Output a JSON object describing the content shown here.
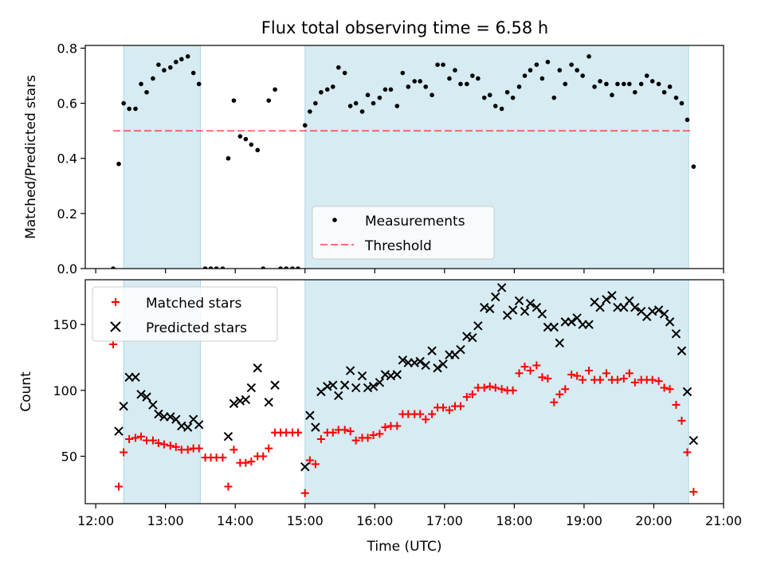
{
  "title": "Flux total observing time = 6.58 h",
  "colors": {
    "shade": "#add8e6",
    "threshold": "#ff0000",
    "matched": "#ff0000",
    "predicted": "#000000",
    "measure": "#000000"
  },
  "chart_data": [
    {
      "type": "scatter",
      "ylabel": "Matched/Predicted stars",
      "xlim": [
        11.85,
        21.0
      ],
      "ylim": [
        0,
        0.81
      ],
      "ytick_labels": [
        "0.0",
        "0.2",
        "0.4",
        "0.6",
        "0.8"
      ],
      "ytick_values": [
        0,
        0.2,
        0.4,
        0.6,
        0.8
      ],
      "shaded_spans": [
        [
          12.4,
          13.5
        ],
        [
          15.0,
          20.5
        ]
      ],
      "threshold": {
        "name": "Threshold",
        "y": 0.5,
        "x_range": [
          12.25,
          20.55
        ]
      },
      "legend": {
        "position": "lower center",
        "entries": [
          "Measurements",
          "Threshold"
        ]
      },
      "series": [
        {
          "name": "Measurements",
          "x": [
            12.25,
            12.33,
            12.4,
            12.48,
            12.57,
            12.65,
            12.73,
            12.82,
            12.9,
            12.98,
            13.07,
            13.15,
            13.23,
            13.32,
            13.4,
            13.48,
            13.57,
            13.65,
            13.73,
            13.82,
            13.9,
            13.98,
            14.07,
            14.15,
            14.23,
            14.32,
            14.4,
            14.48,
            14.57,
            14.65,
            14.73,
            14.82,
            14.9,
            15.0,
            15.07,
            15.15,
            15.23,
            15.32,
            15.4,
            15.48,
            15.57,
            15.65,
            15.73,
            15.82,
            15.9,
            15.98,
            16.07,
            16.15,
            16.23,
            16.32,
            16.4,
            16.48,
            16.57,
            16.65,
            16.73,
            16.82,
            16.9,
            16.98,
            17.07,
            17.15,
            17.23,
            17.32,
            17.4,
            17.48,
            17.57,
            17.65,
            17.73,
            17.82,
            17.9,
            17.98,
            18.07,
            18.15,
            18.23,
            18.32,
            18.4,
            18.48,
            18.57,
            18.65,
            18.73,
            18.82,
            18.9,
            18.98,
            19.07,
            19.15,
            19.23,
            19.32,
            19.4,
            19.48,
            19.57,
            19.65,
            19.73,
            19.82,
            19.9,
            19.98,
            20.07,
            20.15,
            20.23,
            20.32,
            20.4,
            20.48,
            20.57
          ],
          "y": [
            0.0,
            0.38,
            0.6,
            0.58,
            0.58,
            0.67,
            0.64,
            0.69,
            0.74,
            0.72,
            0.73,
            0.75,
            0.76,
            0.77,
            0.71,
            0.67,
            0.0,
            0.0,
            0.0,
            0.0,
            0.4,
            0.61,
            0.48,
            0.47,
            0.45,
            0.43,
            0.0,
            0.61,
            0.65,
            0.0,
            0.0,
            0.0,
            0.0,
            0.52,
            0.57,
            0.6,
            0.64,
            0.65,
            0.66,
            0.73,
            0.71,
            0.59,
            0.6,
            0.57,
            0.63,
            0.6,
            0.62,
            0.65,
            0.65,
            0.59,
            0.71,
            0.66,
            0.68,
            0.68,
            0.66,
            0.63,
            0.74,
            0.74,
            0.69,
            0.72,
            0.67,
            0.67,
            0.7,
            0.69,
            0.62,
            0.63,
            0.59,
            0.58,
            0.64,
            0.62,
            0.66,
            0.7,
            0.72,
            0.74,
            0.69,
            0.75,
            0.62,
            0.72,
            0.67,
            0.74,
            0.72,
            0.7,
            0.77,
            0.66,
            0.68,
            0.67,
            0.63,
            0.67,
            0.67,
            0.67,
            0.64,
            0.67,
            0.7,
            0.68,
            0.67,
            0.64,
            0.66,
            0.62,
            0.6,
            0.54,
            0.37
          ]
        }
      ]
    },
    {
      "type": "scatter",
      "xlabel": "Time (UTC)",
      "ylabel": "Count",
      "xlim": [
        11.85,
        21.0
      ],
      "ylim": [
        14,
        184
      ],
      "xtick_labels": [
        "12:00",
        "13:00",
        "14:00",
        "15:00",
        "16:00",
        "17:00",
        "18:00",
        "19:00",
        "20:00",
        "21:00"
      ],
      "xtick_values": [
        12,
        13,
        14,
        15,
        16,
        17,
        18,
        19,
        20,
        21
      ],
      "ytick_labels": [
        "50",
        "100",
        "150"
      ],
      "ytick_values": [
        50,
        100,
        150
      ],
      "shaded_spans": [
        [
          12.4,
          13.5
        ],
        [
          15.0,
          20.5
        ]
      ],
      "legend": {
        "position": "upper left",
        "entries": [
          "Matched stars",
          "Predicted stars"
        ]
      },
      "series": [
        {
          "name": "Matched stars",
          "x": [
            12.25,
            12.33,
            12.4,
            12.48,
            12.57,
            12.65,
            12.73,
            12.82,
            12.9,
            12.98,
            13.07,
            13.15,
            13.23,
            13.32,
            13.4,
            13.48,
            13.57,
            13.65,
            13.73,
            13.82,
            13.9,
            13.98,
            14.07,
            14.15,
            14.23,
            14.32,
            14.4,
            14.48,
            14.57,
            14.65,
            14.73,
            14.82,
            14.9,
            15.0,
            15.07,
            15.15,
            15.23,
            15.32,
            15.4,
            15.48,
            15.57,
            15.65,
            15.73,
            15.82,
            15.9,
            15.98,
            16.07,
            16.15,
            16.23,
            16.32,
            16.4,
            16.48,
            16.57,
            16.65,
            16.73,
            16.82,
            16.9,
            16.98,
            17.07,
            17.15,
            17.23,
            17.32,
            17.4,
            17.48,
            17.57,
            17.65,
            17.73,
            17.82,
            17.9,
            17.98,
            18.07,
            18.15,
            18.23,
            18.32,
            18.4,
            18.48,
            18.57,
            18.65,
            18.73,
            18.82,
            18.9,
            18.98,
            19.07,
            19.15,
            19.23,
            19.32,
            19.4,
            19.48,
            19.57,
            19.65,
            19.73,
            19.82,
            19.9,
            19.98,
            20.07,
            20.15,
            20.23,
            20.32,
            20.4,
            20.48,
            20.57
          ],
          "y": [
            135,
            27,
            53,
            63,
            64,
            65,
            62,
            62,
            60,
            59,
            58,
            57,
            55,
            55,
            56,
            56,
            49,
            49,
            49,
            49,
            27,
            55,
            45,
            45,
            46,
            50,
            50,
            56,
            68,
            68,
            68,
            68,
            68,
            22,
            47,
            44,
            63,
            68,
            68,
            70,
            70,
            69,
            62,
            64,
            64,
            66,
            67,
            72,
            73,
            73,
            82,
            82,
            82,
            82,
            78,
            82,
            87,
            87,
            85,
            88,
            88,
            95,
            97,
            102,
            102,
            103,
            102,
            101,
            100,
            100,
            113,
            118,
            115,
            119,
            110,
            109,
            91,
            97,
            101,
            112,
            111,
            108,
            115,
            108,
            108,
            113,
            108,
            108,
            109,
            113,
            106,
            108,
            108,
            108,
            107,
            102,
            101,
            89,
            77,
            53,
            23
          ]
        },
        {
          "name": "Predicted stars",
          "x": [
            12.33,
            12.4,
            12.48,
            12.57,
            12.65,
            12.73,
            12.82,
            12.9,
            12.98,
            13.07,
            13.15,
            13.23,
            13.32,
            13.4,
            13.48,
            13.9,
            13.98,
            14.07,
            14.15,
            14.23,
            14.32,
            14.48,
            14.57,
            15.0,
            15.07,
            15.15,
            15.23,
            15.32,
            15.4,
            15.48,
            15.57,
            15.65,
            15.73,
            15.82,
            15.9,
            15.98,
            16.07,
            16.15,
            16.23,
            16.32,
            16.4,
            16.48,
            16.57,
            16.65,
            16.73,
            16.82,
            16.9,
            16.98,
            17.07,
            17.15,
            17.23,
            17.32,
            17.4,
            17.48,
            17.57,
            17.65,
            17.73,
            17.82,
            17.9,
            17.98,
            18.07,
            18.15,
            18.23,
            18.32,
            18.4,
            18.48,
            18.57,
            18.65,
            18.73,
            18.82,
            18.9,
            18.98,
            19.07,
            19.15,
            19.23,
            19.32,
            19.4,
            19.48,
            19.57,
            19.65,
            19.73,
            19.82,
            19.9,
            19.98,
            20.07,
            20.15,
            20.23,
            20.32,
            20.4,
            20.48,
            20.57
          ],
          "y": [
            69,
            88,
            110,
            110,
            97,
            95,
            89,
            82,
            80,
            80,
            78,
            73,
            72,
            78,
            74,
            65,
            90,
            92,
            93,
            102,
            117,
            91,
            104,
            42,
            81,
            72,
            99,
            103,
            104,
            96,
            104,
            115,
            102,
            111,
            102,
            103,
            106,
            112,
            111,
            112,
            123,
            121,
            121,
            122,
            119,
            130,
            117,
            120,
            127,
            127,
            131,
            141,
            140,
            149,
            163,
            162,
            171,
            178,
            157,
            161,
            168,
            160,
            166,
            163,
            158,
            148,
            148,
            136,
            152,
            152,
            155,
            150,
            150,
            167,
            163,
            169,
            172,
            163,
            163,
            168,
            163,
            160,
            156,
            160,
            161,
            158,
            152,
            143,
            130,
            99,
            62
          ]
        }
      ]
    }
  ]
}
